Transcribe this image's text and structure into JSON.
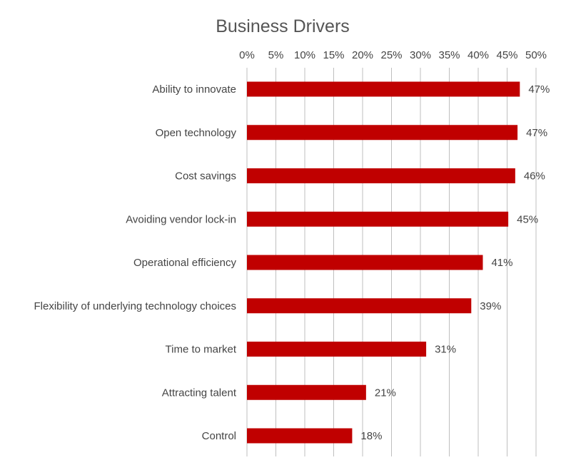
{
  "chart_data": {
    "type": "bar",
    "orientation": "horizontal",
    "title": "Business Drivers",
    "xlabel": "",
    "ylabel": "",
    "xlim": [
      0,
      50
    ],
    "x_tick_labels": [
      "0%",
      "5%",
      "10%",
      "15%",
      "20%",
      "25%",
      "30%",
      "35%",
      "40%",
      "45%",
      "50%"
    ],
    "x_ticks": [
      0,
      5,
      10,
      15,
      20,
      25,
      30,
      35,
      40,
      45,
      50
    ],
    "x_axis_position": "top",
    "grid": true,
    "legend": "none",
    "categories": [
      "Ability to innovate",
      "Open technology",
      "Cost savings",
      "Avoiding vendor lock-in",
      "Operational efficiency",
      "Flexibility of underlying technology choices",
      "Time to market",
      "Attracting talent",
      "Control"
    ],
    "values": [
      47.2,
      46.8,
      46.4,
      45.2,
      40.8,
      38.8,
      31.0,
      20.6,
      18.2
    ],
    "data_labels": [
      "47%",
      "47%",
      "46%",
      "45%",
      "41%",
      "39%",
      "31%",
      "21%",
      "18%"
    ],
    "colors": {
      "bar": "#c00000",
      "grid": "#bfbfbf",
      "text": "#444444"
    }
  }
}
